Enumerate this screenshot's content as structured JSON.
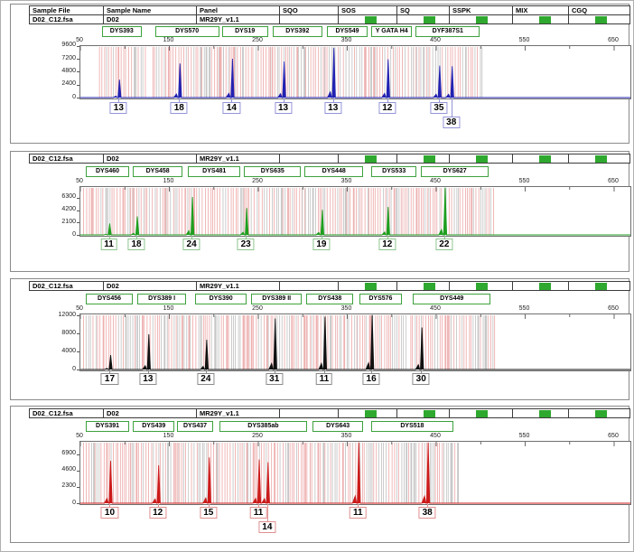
{
  "header_table": {
    "columns": [
      "Sample File",
      "Sample Name",
      "Panel",
      "SQO",
      "SOS",
      "SQ",
      "SSPK",
      "MIX",
      "CGQ"
    ],
    "values": {
      "sample_file": "D02_C12.fsa",
      "sample_name": "D02",
      "panel": "MR29Y_v1.1"
    },
    "quality_flags": [
      {
        "column": "SOS",
        "state": "pass",
        "color": "#2fa82f"
      },
      {
        "column": "SQ",
        "state": "pass",
        "color": "#2fa82f"
      },
      {
        "column": "SSPK",
        "state": "pass",
        "color": "#2fa82f"
      },
      {
        "column": "MIX",
        "state": "pass",
        "color": "#2fa82f"
      },
      {
        "column": "CGQ",
        "state": "pass",
        "color": "#2fa82f"
      }
    ]
  },
  "axis": {
    "x_min": 50,
    "x_max": 650,
    "x_tick_labels": [
      50,
      150,
      250,
      350,
      450,
      550,
      650
    ],
    "x_minor_step": 50,
    "x_unit": "bp"
  },
  "colors": {
    "marker_box_border": "#3da23d",
    "bin_pink": "#eeb0b0",
    "bin_gray": "#c6c6c6",
    "plot_border": "#707070",
    "flag_green": "#2fa82f"
  },
  "chart_data": [
    {
      "type": "area",
      "name": "blue dye channel",
      "trace_color": "#2222b2",
      "allele_box_border": "#9494d8",
      "y_tick_values": [
        9600,
        7200,
        4800,
        2400,
        0
      ],
      "ylim": [
        0,
        9750
      ],
      "markers": [
        {
          "name": "DYS393",
          "bp_start": 75,
          "bp_end": 120
        },
        {
          "name": "DYS570",
          "bp_start": 135,
          "bp_end": 207
        },
        {
          "name": "DYS19",
          "bp_start": 210,
          "bp_end": 262
        },
        {
          "name": "DYS392",
          "bp_start": 267,
          "bp_end": 323
        },
        {
          "name": "DYS549",
          "bp_start": 328,
          "bp_end": 374
        },
        {
          "name": "Y GATA H4",
          "bp_start": 378,
          "bp_end": 424
        },
        {
          "name": "DYF387S1",
          "bp_start": 428,
          "bp_end": 500
        }
      ],
      "peaks": [
        {
          "marker": "DYS393",
          "allele": "13",
          "size_bp": 94,
          "height_rfu": 3500,
          "label_row": 1
        },
        {
          "marker": "DYS570",
          "allele": "18",
          "size_bp": 162,
          "height_rfu": 6500,
          "label_row": 1
        },
        {
          "marker": "DYS19",
          "allele": "14",
          "size_bp": 221,
          "height_rfu": 7400,
          "label_row": 1
        },
        {
          "marker": "DYS392",
          "allele": "13",
          "size_bp": 279,
          "height_rfu": 6900,
          "label_row": 1
        },
        {
          "marker": "DYS549",
          "allele": "13",
          "size_bp": 335,
          "height_rfu": 9400,
          "label_row": 1
        },
        {
          "marker": "Y GATA H4",
          "allele": "12",
          "size_bp": 396,
          "height_rfu": 7300,
          "label_row": 1
        },
        {
          "marker": "DYF387S1",
          "allele": "35",
          "size_bp": 454,
          "height_rfu": 6100,
          "label_row": 1
        },
        {
          "marker": "DYF387S1",
          "allele": "38",
          "size_bp": 468,
          "height_rfu": 6000,
          "label_row": 2
        }
      ]
    },
    {
      "type": "area",
      "name": "green dye channel",
      "trace_color": "#1f9e1f",
      "allele_box_border": "#8fc58f",
      "y_tick_values": [
        6300,
        4200,
        2100,
        0
      ],
      "ylim": [
        0,
        8280
      ],
      "markers": [
        {
          "name": "DYS460",
          "bp_start": 57,
          "bp_end": 106
        },
        {
          "name": "DYS458",
          "bp_start": 110,
          "bp_end": 166
        },
        {
          "name": "DYS481",
          "bp_start": 172,
          "bp_end": 231
        },
        {
          "name": "DYS635",
          "bp_start": 235,
          "bp_end": 299
        },
        {
          "name": "DYS448",
          "bp_start": 303,
          "bp_end": 369
        },
        {
          "name": "DYS533",
          "bp_start": 378,
          "bp_end": 429
        },
        {
          "name": "DYS627",
          "bp_start": 434,
          "bp_end": 510
        }
      ],
      "peaks": [
        {
          "marker": "DYS460",
          "allele": "11",
          "size_bp": 83,
          "height_rfu": 2100,
          "label_row": 1
        },
        {
          "marker": "DYS458",
          "allele": "18",
          "size_bp": 114,
          "height_rfu": 3300,
          "label_row": 1
        },
        {
          "marker": "DYS481",
          "allele": "24",
          "size_bp": 176,
          "height_rfu": 6600,
          "label_row": 1
        },
        {
          "marker": "DYS635",
          "allele": "23",
          "size_bp": 237,
          "height_rfu": 4700,
          "label_row": 1
        },
        {
          "marker": "DYS448",
          "allele": "19",
          "size_bp": 322,
          "height_rfu": 4400,
          "label_row": 1
        },
        {
          "marker": "DYS533",
          "allele": "12",
          "size_bp": 396,
          "height_rfu": 4900,
          "label_row": 1
        },
        {
          "marker": "DYS627",
          "allele": "22",
          "size_bp": 460,
          "height_rfu": 8200,
          "label_row": 1
        }
      ]
    },
    {
      "type": "area",
      "name": "black dye channel",
      "trace_color": "#111111",
      "allele_box_border": "#8a8a8a",
      "y_tick_values": [
        12000,
        8000,
        4000,
        0
      ],
      "ylim": [
        0,
        12400
      ],
      "markers": [
        {
          "name": "DYS456",
          "bp_start": 57,
          "bp_end": 110
        },
        {
          "name": "DYS389 I",
          "bp_start": 115,
          "bp_end": 170
        },
        {
          "name": "DYS390",
          "bp_start": 180,
          "bp_end": 238
        },
        {
          "name": "DYS389 II",
          "bp_start": 243,
          "bp_end": 300
        },
        {
          "name": "DYS438",
          "bp_start": 305,
          "bp_end": 358
        },
        {
          "name": "DYS576",
          "bp_start": 365,
          "bp_end": 412
        },
        {
          "name": "DYS449",
          "bp_start": 425,
          "bp_end": 512
        }
      ],
      "peaks": [
        {
          "marker": "DYS456",
          "allele": "17",
          "size_bp": 84,
          "height_rfu": 3400,
          "label_row": 1
        },
        {
          "marker": "DYS389 I",
          "allele": "13",
          "size_bp": 127,
          "height_rfu": 8000,
          "label_row": 1
        },
        {
          "marker": "DYS390",
          "allele": "24",
          "size_bp": 192,
          "height_rfu": 6800,
          "label_row": 1
        },
        {
          "marker": "DYS389 II",
          "allele": "31",
          "size_bp": 269,
          "height_rfu": 11500,
          "label_row": 1
        },
        {
          "marker": "DYS438",
          "allele": "11",
          "size_bp": 325,
          "height_rfu": 11900,
          "label_row": 1
        },
        {
          "marker": "DYS576",
          "allele": "16",
          "size_bp": 378,
          "height_rfu": 12800,
          "label_row": 1
        },
        {
          "marker": "DYS449",
          "allele": "30",
          "size_bp": 434,
          "height_rfu": 9500,
          "label_row": 1
        }
      ]
    },
    {
      "type": "area",
      "name": "red dye channel",
      "trace_color": "#cc1a1a",
      "allele_box_border": "#e09090",
      "y_tick_values": [
        6900,
        4600,
        2300,
        0
      ],
      "ylim": [
        0,
        8800
      ],
      "markers": [
        {
          "name": "DYS391",
          "bp_start": 57,
          "bp_end": 106
        },
        {
          "name": "DYS439",
          "bp_start": 110,
          "bp_end": 157
        },
        {
          "name": "DYS437",
          "bp_start": 160,
          "bp_end": 200
        },
        {
          "name": "DYS385ab",
          "bp_start": 207,
          "bp_end": 306
        },
        {
          "name": "DYS643",
          "bp_start": 312,
          "bp_end": 369
        },
        {
          "name": "DYS518",
          "bp_start": 378,
          "bp_end": 470
        }
      ],
      "peaks": [
        {
          "marker": "DYS391",
          "allele": "10",
          "size_bp": 84,
          "height_rfu": 6100,
          "label_row": 1
        },
        {
          "marker": "DYS439",
          "allele": "12",
          "size_bp": 138,
          "height_rfu": 5500,
          "label_row": 1
        },
        {
          "marker": "DYS437",
          "allele": "15",
          "size_bp": 195,
          "height_rfu": 6600,
          "label_row": 1
        },
        {
          "marker": "DYS385ab",
          "allele": "11",
          "size_bp": 251,
          "height_rfu": 6300,
          "label_row": 1
        },
        {
          "marker": "DYS385ab",
          "allele": "14",
          "size_bp": 261,
          "height_rfu": 5900,
          "label_row": 2
        },
        {
          "marker": "DYS643",
          "allele": "11",
          "size_bp": 363,
          "height_rfu": 8800,
          "label_row": 1
        },
        {
          "marker": "DYS518",
          "allele": "38",
          "size_bp": 441,
          "height_rfu": 8700,
          "label_row": 1
        }
      ]
    }
  ]
}
